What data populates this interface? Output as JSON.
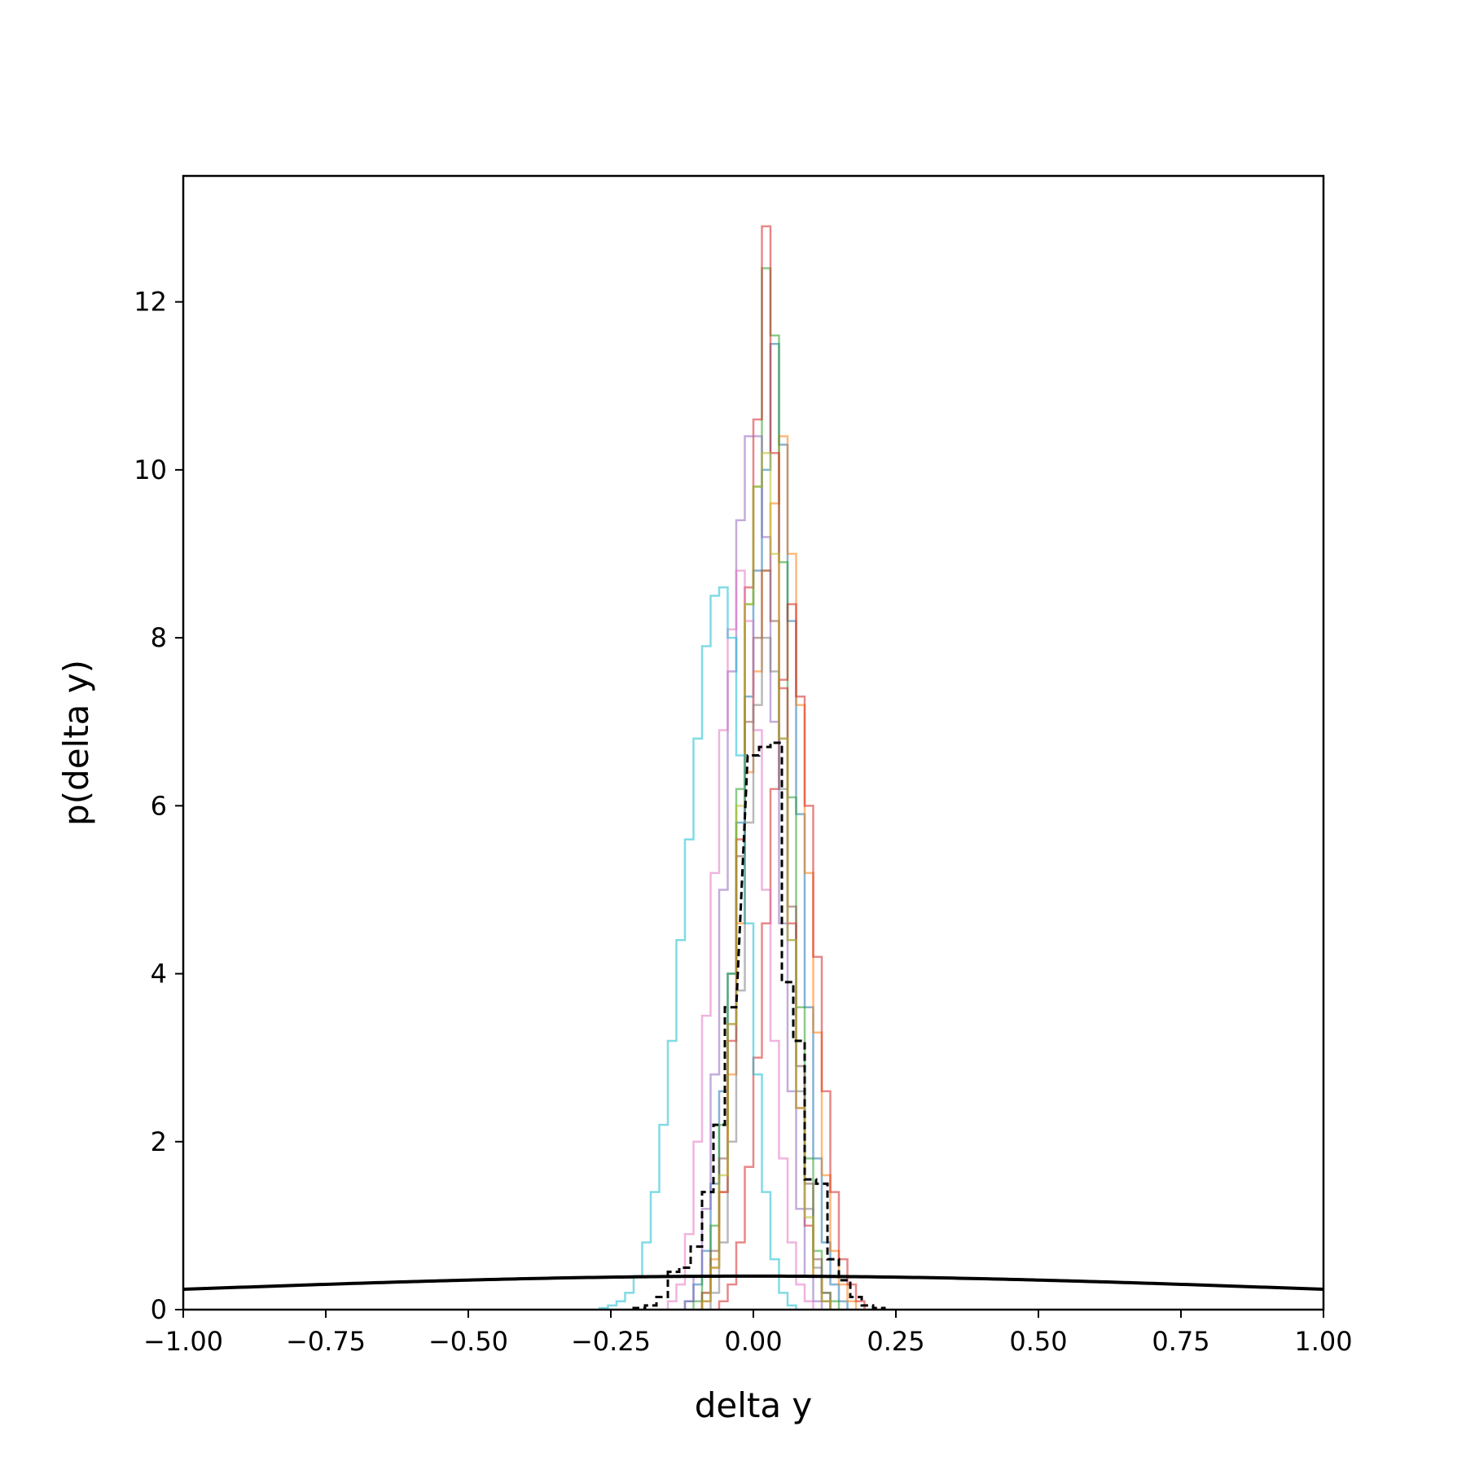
{
  "chart_data": {
    "type": "histogram",
    "xlabel": "delta y",
    "ylabel": "p(delta y)",
    "xlim": [
      -1.0,
      1.0
    ],
    "ylim": [
      0,
      13.5
    ],
    "xticks": [
      "−1.00",
      "−0.75",
      "−0.50",
      "−0.25",
      "0.00",
      "0.25",
      "0.50",
      "0.75",
      "1.00"
    ],
    "xtick_values": [
      -1.0,
      -0.75,
      -0.5,
      -0.25,
      0.0,
      0.25,
      0.5,
      0.75,
      1.0
    ],
    "yticks": [
      "0",
      "2",
      "4",
      "6",
      "8",
      "10",
      "12"
    ],
    "ytick_values": [
      0,
      2,
      4,
      6,
      8,
      10,
      12
    ],
    "grid": false,
    "series": [
      {
        "color": "#1f77b4",
        "bin_width": 0.015,
        "bins": [
          [
            -0.12,
            0.1
          ],
          [
            -0.105,
            0.3
          ],
          [
            -0.09,
            0.7
          ],
          [
            -0.075,
            1.5
          ],
          [
            -0.06,
            2.6
          ],
          [
            -0.045,
            4.0
          ],
          [
            -0.03,
            5.8
          ],
          [
            -0.015,
            7.3
          ],
          [
            0.0,
            8.8
          ],
          [
            0.015,
            10.0
          ],
          [
            0.03,
            11.5
          ],
          [
            0.045,
            10.3
          ],
          [
            0.06,
            8.2
          ],
          [
            0.075,
            5.9
          ],
          [
            0.09,
            3.6
          ],
          [
            0.105,
            1.8
          ],
          [
            0.12,
            0.8
          ],
          [
            0.135,
            0.3
          ],
          [
            0.15,
            0.1
          ]
        ]
      },
      {
        "color": "#ff7f0e",
        "bin_width": 0.015,
        "bins": [
          [
            -0.09,
            0.2
          ],
          [
            -0.075,
            0.6
          ],
          [
            -0.06,
            1.4
          ],
          [
            -0.045,
            2.8
          ],
          [
            -0.03,
            4.6
          ],
          [
            -0.015,
            6.4
          ],
          [
            0.0,
            7.6
          ],
          [
            0.015,
            8.8
          ],
          [
            0.03,
            9.6
          ],
          [
            0.045,
            10.4
          ],
          [
            0.06,
            9.0
          ],
          [
            0.075,
            7.2
          ],
          [
            0.09,
            5.2
          ],
          [
            0.105,
            3.3
          ],
          [
            0.12,
            1.6
          ],
          [
            0.135,
            0.7
          ],
          [
            0.15,
            0.3
          ],
          [
            0.165,
            0.1
          ]
        ]
      },
      {
        "color": "#2ca02c",
        "bin_width": 0.015,
        "bins": [
          [
            -0.105,
            0.1
          ],
          [
            -0.09,
            0.4
          ],
          [
            -0.075,
            1.0
          ],
          [
            -0.06,
            2.2
          ],
          [
            -0.045,
            4.0
          ],
          [
            -0.03,
            6.2
          ],
          [
            -0.015,
            8.4
          ],
          [
            0.0,
            9.8
          ],
          [
            0.015,
            12.4
          ],
          [
            0.03,
            11.6
          ],
          [
            0.045,
            8.9
          ],
          [
            0.06,
            6.1
          ],
          [
            0.075,
            3.6
          ],
          [
            0.09,
            1.8
          ],
          [
            0.105,
            0.7
          ],
          [
            0.12,
            0.2
          ],
          [
            0.135,
            0.1
          ]
        ]
      },
      {
        "color": "#d62728",
        "bin_width": 0.015,
        "bins": [
          [
            -0.06,
            0.1
          ],
          [
            -0.045,
            0.3
          ],
          [
            -0.03,
            0.8
          ],
          [
            -0.015,
            1.7
          ],
          [
            0.0,
            3.0
          ],
          [
            0.015,
            4.6
          ],
          [
            0.03,
            6.2
          ],
          [
            0.045,
            7.5
          ],
          [
            0.06,
            8.4
          ],
          [
            0.075,
            7.3
          ],
          [
            0.09,
            6.0
          ],
          [
            0.105,
            4.2
          ],
          [
            0.12,
            2.6
          ],
          [
            0.135,
            1.4
          ],
          [
            0.15,
            0.6
          ],
          [
            0.165,
            0.3
          ],
          [
            0.18,
            0.1
          ]
        ]
      },
      {
        "color": "#d62728",
        "bin_width": 0.015,
        "bins": [
          [
            -0.09,
            0.1
          ],
          [
            -0.075,
            0.5
          ],
          [
            -0.06,
            1.4
          ],
          [
            -0.045,
            3.2
          ],
          [
            -0.03,
            5.6
          ],
          [
            -0.015,
            8.6
          ],
          [
            0.0,
            10.6
          ],
          [
            0.015,
            12.9
          ],
          [
            0.03,
            10.2
          ],
          [
            0.045,
            7.4
          ],
          [
            0.06,
            4.6
          ],
          [
            0.075,
            2.4
          ],
          [
            0.09,
            1.0
          ],
          [
            0.105,
            0.4
          ],
          [
            0.12,
            0.1
          ]
        ]
      },
      {
        "color": "#9467bd",
        "bin_width": 0.015,
        "bins": [
          [
            -0.12,
            0.1
          ],
          [
            -0.105,
            0.4
          ],
          [
            -0.09,
            1.2
          ],
          [
            -0.075,
            2.8
          ],
          [
            -0.06,
            5.0
          ],
          [
            -0.045,
            7.6
          ],
          [
            -0.03,
            9.4
          ],
          [
            -0.015,
            10.4
          ],
          [
            0.0,
            10.4
          ],
          [
            0.015,
            9.2
          ],
          [
            0.03,
            7.0
          ],
          [
            0.045,
            4.6
          ],
          [
            0.06,
            2.6
          ],
          [
            0.075,
            1.2
          ],
          [
            0.09,
            0.4
          ],
          [
            0.105,
            0.1
          ]
        ]
      },
      {
        "color": "#8c564b",
        "bin_width": 0.015,
        "bins": [
          [
            -0.09,
            0.2
          ],
          [
            -0.075,
            0.7
          ],
          [
            -0.06,
            1.8
          ],
          [
            -0.045,
            3.4
          ],
          [
            -0.03,
            5.4
          ],
          [
            -0.015,
            7.0
          ],
          [
            0.0,
            8.0
          ],
          [
            0.015,
            8.8
          ],
          [
            0.03,
            8.2
          ],
          [
            0.045,
            6.8
          ],
          [
            0.06,
            4.8
          ],
          [
            0.075,
            2.9
          ],
          [
            0.09,
            1.5
          ],
          [
            0.105,
            0.6
          ],
          [
            0.12,
            0.2
          ]
        ]
      },
      {
        "color": "#e377c2",
        "bin_width": 0.015,
        "bins": [
          [
            -0.15,
            0.1
          ],
          [
            -0.135,
            0.3
          ],
          [
            -0.12,
            0.9
          ],
          [
            -0.105,
            2.0
          ],
          [
            -0.09,
            3.5
          ],
          [
            -0.075,
            5.2
          ],
          [
            -0.06,
            6.9
          ],
          [
            -0.045,
            8.1
          ],
          [
            -0.03,
            8.8
          ],
          [
            -0.015,
            8.2
          ],
          [
            0.0,
            6.9
          ],
          [
            0.015,
            5.0
          ],
          [
            0.03,
            3.2
          ],
          [
            0.045,
            1.8
          ],
          [
            0.06,
            0.8
          ],
          [
            0.075,
            0.3
          ],
          [
            0.09,
            0.1
          ]
        ]
      },
      {
        "color": "#7f7f7f",
        "bin_width": 0.015,
        "bins": [
          [
            -0.075,
            0.2
          ],
          [
            -0.06,
            0.8
          ],
          [
            -0.045,
            2.0
          ],
          [
            -0.03,
            3.8
          ],
          [
            -0.015,
            5.8
          ],
          [
            0.0,
            7.2
          ],
          [
            0.015,
            8.0
          ],
          [
            0.03,
            7.6
          ],
          [
            0.045,
            6.2
          ],
          [
            0.06,
            4.4
          ],
          [
            0.075,
            2.6
          ],
          [
            0.09,
            1.2
          ],
          [
            0.105,
            0.5
          ],
          [
            0.12,
            0.1
          ]
        ]
      },
      {
        "color": "#bcbd22",
        "bin_width": 0.015,
        "bins": [
          [
            -0.09,
            0.1
          ],
          [
            -0.075,
            0.5
          ],
          [
            -0.06,
            1.6
          ],
          [
            -0.045,
            3.4
          ],
          [
            -0.03,
            6.0
          ],
          [
            -0.015,
            8.4
          ],
          [
            0.0,
            9.8
          ],
          [
            0.015,
            10.2
          ],
          [
            0.03,
            9.0
          ],
          [
            0.045,
            6.8
          ],
          [
            0.06,
            4.4
          ],
          [
            0.075,
            2.4
          ],
          [
            0.09,
            1.1
          ],
          [
            0.105,
            0.4
          ],
          [
            0.12,
            0.1
          ]
        ]
      },
      {
        "color": "#17becf",
        "bin_width": 0.015,
        "bins": [
          [
            -0.27,
            0.02
          ],
          [
            -0.255,
            0.05
          ],
          [
            -0.24,
            0.1
          ],
          [
            -0.225,
            0.2
          ],
          [
            -0.21,
            0.4
          ],
          [
            -0.195,
            0.8
          ],
          [
            -0.18,
            1.4
          ],
          [
            -0.165,
            2.2
          ],
          [
            -0.15,
            3.2
          ],
          [
            -0.135,
            4.4
          ],
          [
            -0.12,
            5.6
          ],
          [
            -0.105,
            6.8
          ],
          [
            -0.09,
            7.9
          ],
          [
            -0.075,
            8.5
          ],
          [
            -0.06,
            8.6
          ],
          [
            -0.045,
            8.0
          ],
          [
            -0.03,
            6.6
          ],
          [
            -0.015,
            4.6
          ],
          [
            0.0,
            2.8
          ],
          [
            0.015,
            1.4
          ],
          [
            0.03,
            0.6
          ],
          [
            0.045,
            0.2
          ],
          [
            0.06,
            0.05
          ]
        ]
      },
      {
        "color": "#000000",
        "dashed": true,
        "bin_width": 0.02,
        "bins": [
          [
            -0.21,
            0.02
          ],
          [
            -0.19,
            0.05
          ],
          [
            -0.17,
            0.15
          ],
          [
            -0.15,
            0.45
          ],
          [
            -0.13,
            0.5
          ],
          [
            -0.11,
            0.75
          ],
          [
            -0.09,
            1.4
          ],
          [
            -0.07,
            2.2
          ],
          [
            -0.05,
            3.6
          ],
          [
            -0.01,
            6.6
          ],
          [
            0.01,
            6.7
          ],
          [
            0.03,
            6.75
          ],
          [
            0.05,
            3.9
          ],
          [
            0.07,
            3.2
          ],
          [
            0.09,
            1.55
          ],
          [
            0.11,
            1.5
          ],
          [
            0.13,
            0.6
          ],
          [
            0.15,
            0.35
          ],
          [
            0.17,
            0.15
          ],
          [
            0.19,
            0.05
          ],
          [
            0.21,
            0.02
          ]
        ]
      }
    ],
    "curve": {
      "color": "#000000",
      "mean": 0.0,
      "std": 1.0
    }
  }
}
